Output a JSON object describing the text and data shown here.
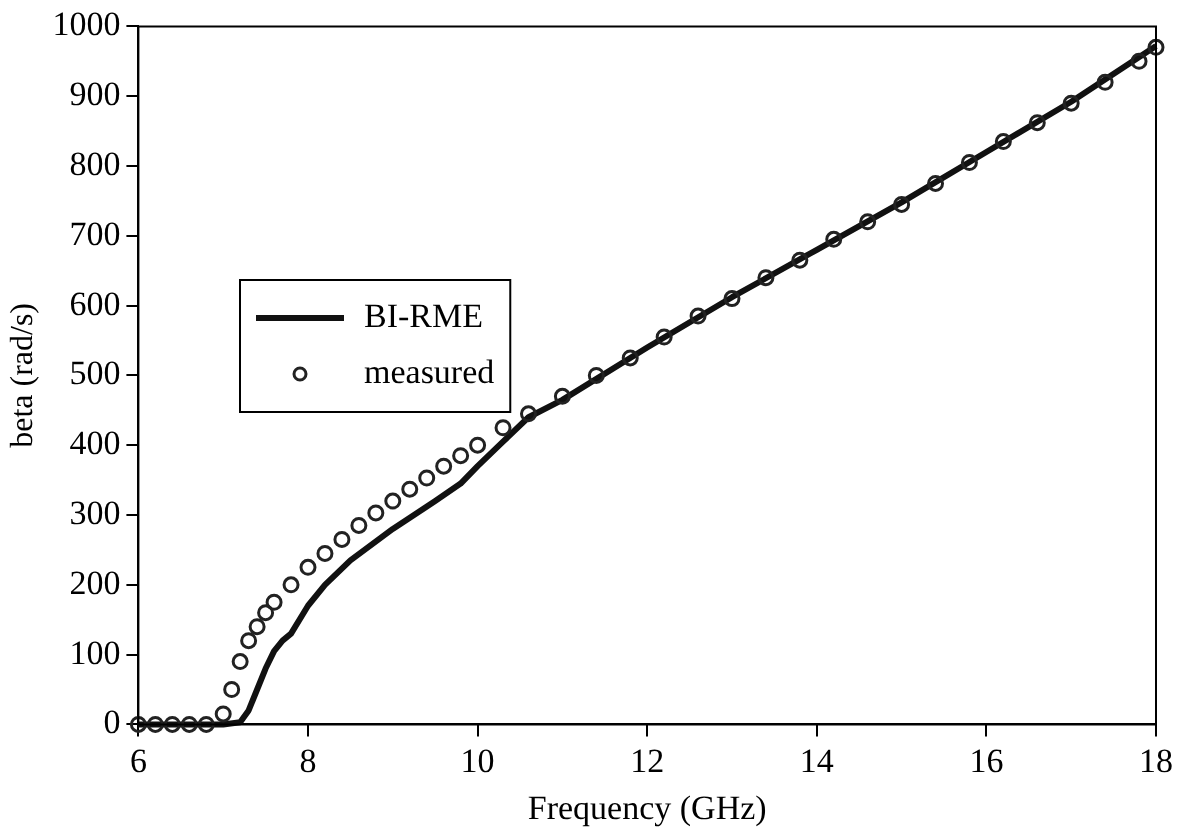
{
  "chart_data": {
    "type": "line",
    "xlabel": "Frequency (GHz)",
    "ylabel": "beta (rad/s)",
    "xlim": [
      6,
      18
    ],
    "xticks": [
      6,
      8,
      10,
      12,
      14,
      16,
      18
    ],
    "ylim": [
      0,
      1000
    ],
    "yticks": [
      0,
      100,
      200,
      300,
      400,
      500,
      600,
      700,
      800,
      900,
      1000
    ],
    "grid": false,
    "legend": "left",
    "series": [
      {
        "name": "BI-RME",
        "color": "#111111",
        "marker": "none",
        "line_style": "solid",
        "x": [
          6,
          6.5,
          7.0,
          7.2,
          7.3,
          7.4,
          7.5,
          7.6,
          7.7,
          7.8,
          8.0,
          8.2,
          8.5,
          9.0,
          9.5,
          9.8,
          10.0,
          10.3,
          10.6,
          11,
          12,
          13,
          14,
          15,
          16,
          17,
          18
        ],
        "values": [
          0,
          0,
          0,
          3,
          20,
          50,
          80,
          105,
          120,
          130,
          170,
          200,
          235,
          280,
          320,
          345,
          370,
          405,
          440,
          465,
          540,
          612,
          680,
          748,
          820,
          892,
          972
        ]
      },
      {
        "name": "measured",
        "type": "scatter",
        "color": "#222222",
        "marker": "circle",
        "x": [
          6.0,
          6.2,
          6.4,
          6.6,
          6.8,
          7.0,
          7.1,
          7.2,
          7.3,
          7.4,
          7.5,
          7.6,
          7.8,
          8.0,
          8.2,
          8.4,
          8.6,
          8.8,
          9.0,
          9.2,
          9.4,
          9.6,
          9.8,
          10.0,
          10.3,
          10.6,
          11.0,
          11.4,
          11.8,
          12.2,
          12.6,
          13.0,
          13.4,
          13.8,
          14.2,
          14.6,
          15.0,
          15.4,
          15.8,
          16.2,
          16.6,
          17.0,
          17.4,
          17.8,
          18.0
        ],
        "values": [
          0,
          0,
          0,
          0,
          0,
          15,
          50,
          90,
          120,
          140,
          160,
          175,
          200,
          225,
          245,
          265,
          285,
          303,
          320,
          337,
          353,
          370,
          385,
          400,
          425,
          445,
          470,
          500,
          525,
          555,
          585,
          610,
          640,
          665,
          695,
          720,
          745,
          775,
          805,
          835,
          862,
          890,
          920,
          950,
          970
        ]
      }
    ]
  }
}
